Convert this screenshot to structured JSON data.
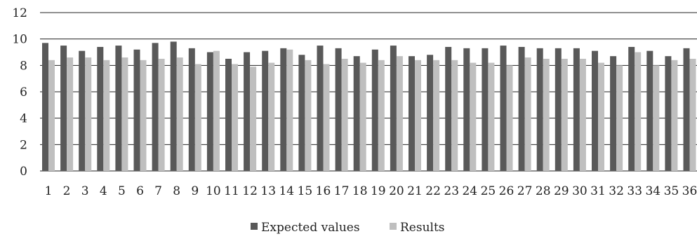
{
  "chart_data": {
    "type": "bar",
    "categories": [
      "1",
      "2",
      "3",
      "4",
      "5",
      "6",
      "7",
      "8",
      "9",
      "10",
      "11",
      "12",
      "13",
      "14",
      "15",
      "16",
      "17",
      "18",
      "19",
      "20",
      "21",
      "22",
      "23",
      "24",
      "25",
      "26",
      "27",
      "28",
      "29",
      "30",
      "31",
      "32",
      "33",
      "34",
      "35",
      "36"
    ],
    "series": [
      {
        "name": "Expected values",
        "color": "#595959",
        "values": [
          9.7,
          9.5,
          9.1,
          9.4,
          9.5,
          9.2,
          9.7,
          9.8,
          9.3,
          9.0,
          8.5,
          9.0,
          9.1,
          9.3,
          8.8,
          9.5,
          9.3,
          8.7,
          9.2,
          9.5,
          8.7,
          8.8,
          9.4,
          9.3,
          9.3,
          9.5,
          9.4,
          9.3,
          9.3,
          9.3,
          9.1,
          8.7,
          9.4,
          9.1,
          8.7,
          9.3
        ]
      },
      {
        "name": "Results",
        "color": "#bfbfbf",
        "values": [
          8.4,
          8.6,
          8.6,
          8.4,
          8.6,
          8.4,
          8.5,
          8.6,
          8.1,
          9.1,
          8.1,
          7.9,
          8.2,
          9.2,
          8.4,
          8.1,
          8.5,
          8.2,
          8.4,
          8.7,
          8.4,
          8.4,
          8.4,
          8.2,
          8.2,
          8.0,
          8.6,
          8.5,
          8.5,
          8.5,
          8.2,
          8.0,
          9.0,
          8.0,
          8.4,
          8.5
        ]
      }
    ],
    "ylim": [
      0,
      12
    ],
    "yticks": [
      "0",
      "2",
      "4",
      "6",
      "8",
      "10",
      "12"
    ],
    "grid": true,
    "legend_position": "bottom",
    "legend": [
      "Expected values",
      "Results"
    ],
    "title": "",
    "xlabel": "",
    "ylabel": ""
  }
}
